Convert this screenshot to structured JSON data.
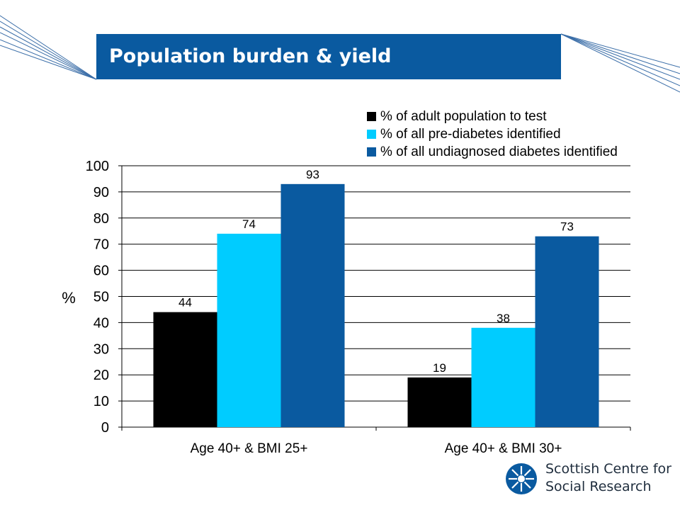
{
  "page": {
    "title": "Population burden & yield"
  },
  "chart_data": {
    "type": "bar",
    "categories": [
      "Age 40+ & BMI 25+",
      "Age 40+ & BMI 30+"
    ],
    "series": [
      {
        "name": "% of adult population to test",
        "values": [
          44,
          19
        ],
        "color": "#000000"
      },
      {
        "name": "% of all pre-diabetes identified",
        "values": [
          74,
          38
        ],
        "color": "#00ccff"
      },
      {
        "name": "% of all undiagnosed diabetes identified",
        "values": [
          93,
          73
        ],
        "color": "#0a5aa0"
      }
    ],
    "ylabel": "%",
    "xlabel": "",
    "ylim": [
      0,
      100
    ],
    "yticks": [
      0,
      10,
      20,
      30,
      40,
      50,
      60,
      70,
      80,
      90,
      100
    ],
    "grid": true,
    "legend": "top-right"
  },
  "logo": {
    "line1": "Scottish Centre for",
    "line2": "Social Research",
    "icon": "scsr-logo-icon",
    "color": "#0a5aa0"
  }
}
